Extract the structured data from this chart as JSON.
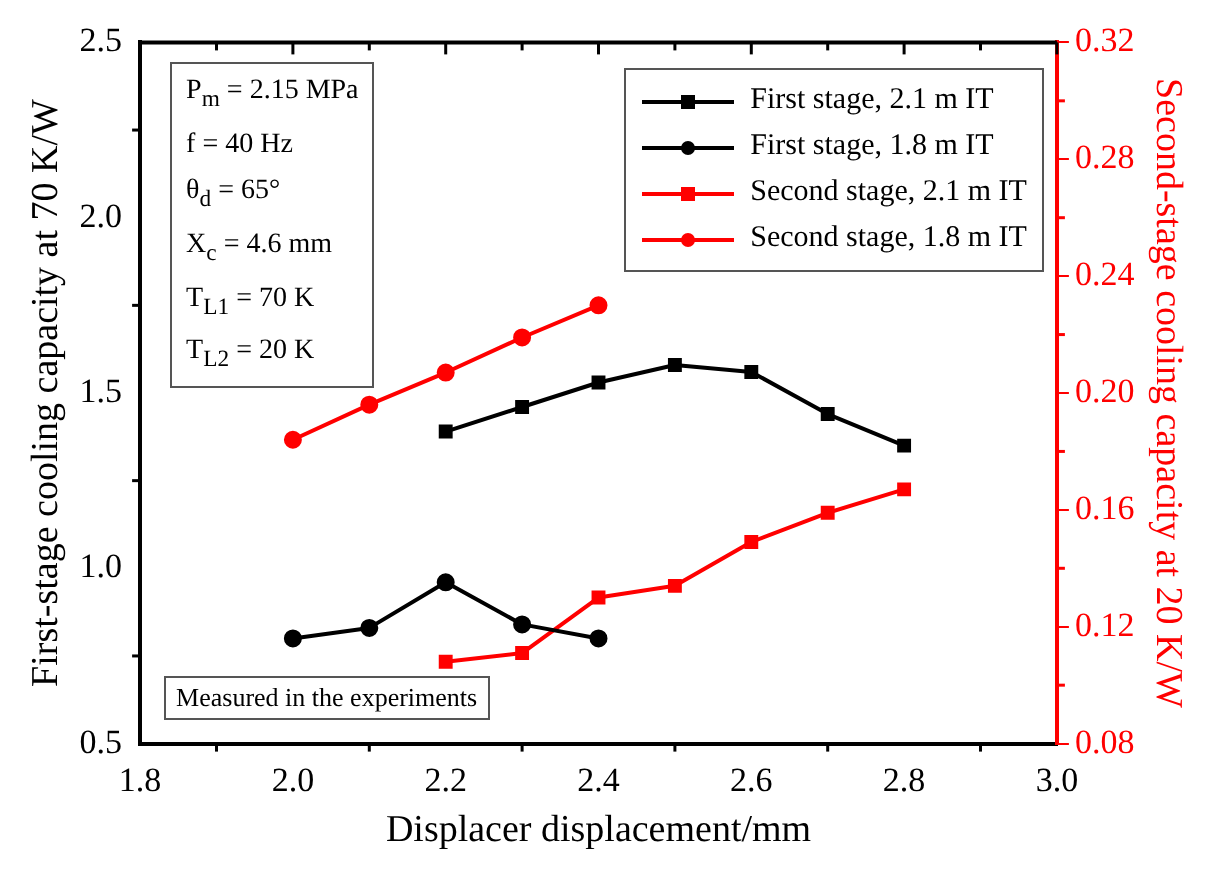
{
  "chart_data": {
    "type": "line",
    "xlabel": "Displacer displacement/mm",
    "ylabel": "First-stage cooling capacity at 70 K/W",
    "y2label": "Second-stage cooling capacity at 20 K/W",
    "xlim": [
      1.8,
      3.0
    ],
    "xticks": [
      1.8,
      {
        "value": 2,
        "label": "2.0"
      },
      2.2,
      2.4,
      2.6,
      2.8,
      {
        "value": 3,
        "label": "3.0"
      }
    ],
    "ylim": [
      0.5,
      2.5
    ],
    "yticks": [
      0.5,
      {
        "value": 1,
        "label": "1.0"
      },
      1.5,
      {
        "value": 2,
        "label": "2.0"
      },
      2.5
    ],
    "y2lim": [
      0.08,
      0.32
    ],
    "y2ticks": [
      0.08,
      0.12,
      0.16,
      {
        "value": 0.2,
        "label": "0.20"
      },
      0.24,
      0.28,
      0.32
    ],
    "grid": false,
    "legend": "top right",
    "series": [
      {
        "name": "First stage, 2.1 m IT",
        "color": "#000000",
        "marker": "square",
        "x": [
          2.2,
          2.3,
          2.4,
          2.5,
          2.6,
          2.7,
          2.8
        ],
        "values": [
          1.39,
          1.46,
          1.53,
          1.58,
          1.56,
          1.44,
          1.35
        ]
      },
      {
        "name": "First stage, 1.8 m IT",
        "color": "#000000",
        "marker": "circle",
        "x": [
          2.0,
          2.1,
          2.2,
          2.3,
          2.4
        ],
        "values": [
          0.8,
          0.83,
          0.96,
          0.84,
          0.8
        ]
      },
      {
        "name": "Second stage, 2.1 m IT",
        "color": "#ff0000",
        "marker": "square",
        "axis": "y2",
        "x": [
          2.2,
          2.3,
          2.4,
          2.5,
          2.6,
          2.7,
          2.8
        ],
        "values": [
          0.108,
          0.111,
          0.13,
          0.134,
          0.149,
          0.159,
          0.167
        ]
      },
      {
        "name": "Second stage, 1.8 m IT",
        "color": "#ff0000",
        "marker": "circle",
        "axis": "y2",
        "x": [
          2.0,
          2.1,
          2.2,
          2.3,
          2.4
        ],
        "values": [
          0.184,
          0.196,
          0.207,
          0.219,
          0.23
        ]
      }
    ],
    "annotations": [
      "P$_{m}$ = 2.15 MPa",
      "f = 40 Hz",
      "θ$_{d}$ = 65°",
      "X$_{c}$ = 4.6 mm",
      "T$_{L1}$ = 70 K",
      "T$_{L2}$ = 20 K",
      "Measured in the experiments"
    ]
  }
}
